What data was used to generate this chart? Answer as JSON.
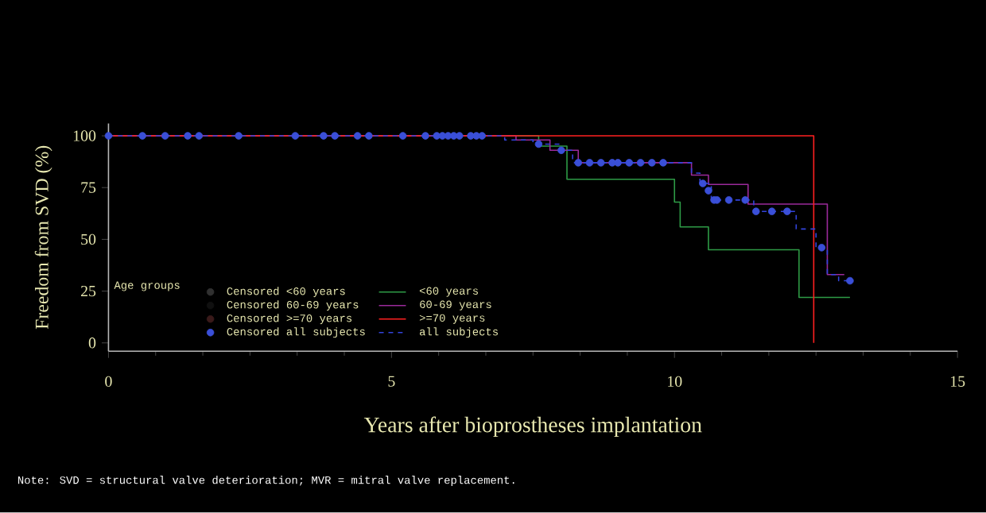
{
  "chart_data": {
    "type": "step",
    "xlabel": "Years after bioprostheses implantation",
    "ylabel": "Freedom from SVD (%)",
    "legend_title": "Age groups",
    "annotations": [
      "Note: SVD = structural valve deterioration; MVR = mitral valve replacement."
    ],
    "xlim": [
      0,
      15
    ],
    "ylim": [
      -4,
      106
    ],
    "xticks": [
      0,
      5,
      10,
      15
    ],
    "yticks": [
      0,
      25,
      50,
      75,
      100
    ],
    "grid": false,
    "legend": "bottom left",
    "series": [
      {
        "name": "Censored <60 years",
        "type": "scatter",
        "marker": "circle",
        "color": "#303030"
      },
      {
        "name": "Censored 60-69 years",
        "type": "scatter",
        "marker": "circle",
        "color": "#101010"
      },
      {
        "name": "Censored >=70 years",
        "type": "scatter",
        "marker": "circle",
        "color": "#3a1a1a"
      },
      {
        "name": "Censored all subjects",
        "type": "scatter",
        "marker": "circle",
        "color": "#3a4fd8",
        "x": [
          0,
          0.6,
          1.0,
          1.4,
          1.6,
          2.3,
          3.3,
          3.8,
          4.0,
          4.4,
          4.6,
          5.2,
          5.6,
          5.8,
          5.9,
          6.0,
          6.1,
          6.2,
          6.4,
          6.5,
          6.6,
          7.6,
          8.0,
          8.3,
          8.5,
          8.7,
          8.9,
          9.0,
          9.2,
          9.4,
          9.6,
          9.8,
          10.5,
          10.6,
          10.7,
          10.75,
          10.96,
          11.25,
          11.44,
          11.72,
          11.99,
          12.6,
          13.1
        ],
        "values": [
          100,
          100,
          100,
          100,
          100,
          100,
          100,
          100,
          100,
          100,
          100,
          100,
          100,
          100,
          100,
          100,
          100,
          100,
          100,
          100,
          100,
          96,
          93,
          87,
          87,
          87,
          87,
          87,
          87,
          87,
          87,
          87,
          77,
          73.5,
          69,
          69,
          69,
          69,
          63.5,
          63.5,
          63.5,
          46,
          30
        ]
      },
      {
        "name": "<60 years",
        "marker": "none",
        "color": "#2e9b46",
        "x": [
          0,
          7.6,
          8.1,
          10.0,
          10.1,
          10.6,
          12.2,
          13.1
        ],
        "values": [
          100,
          95,
          79,
          68,
          56,
          45,
          22,
          22
        ]
      },
      {
        "name": "60-69 years",
        "marker": "none",
        "color": "#9b2a9b",
        "x": [
          0,
          7.2,
          7.8,
          8.3,
          10.3,
          10.6,
          11.3,
          12.7,
          13.0
        ],
        "values": [
          100,
          98,
          93,
          87,
          81,
          76.5,
          67,
          33,
          33
        ]
      },
      {
        "name": ">=70 years",
        "marker": "none",
        "color": "#ff2020",
        "x": [
          0,
          12.46
        ],
        "values": [
          100,
          0
        ]
      },
      {
        "name": "all subjects",
        "marker": "none",
        "line_style": "dashed",
        "color": "#3344dd",
        "x": [
          0,
          7.0,
          7.5,
          8.0,
          8.2,
          10.3,
          10.45,
          10.65,
          11.4,
          12.15,
          12.5,
          12.7,
          12.9,
          13.1
        ],
        "values": [
          100,
          98,
          96,
          93,
          87,
          82,
          77,
          69,
          63.5,
          55,
          46,
          33,
          30,
          30
        ]
      }
    ]
  }
}
